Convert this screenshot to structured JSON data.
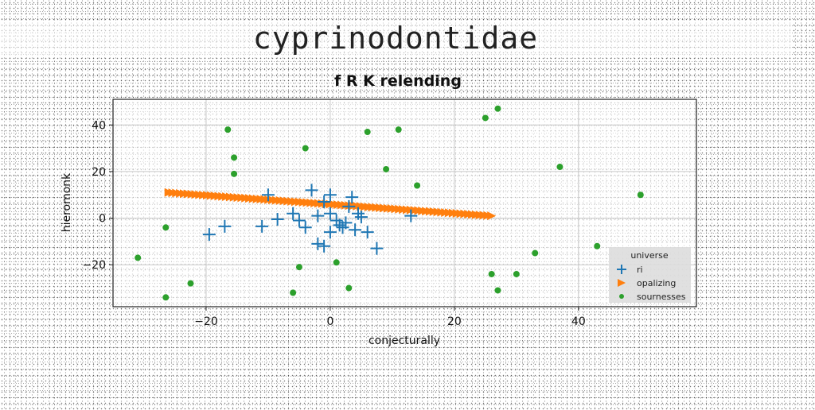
{
  "page": {
    "title": "cyprinodontidae"
  },
  "chart_data": {
    "type": "scatter",
    "title": "f R K relending",
    "xlabel": "conjecturally",
    "ylabel": "hieromonk",
    "xlim": [
      -35,
      59
    ],
    "ylim": [
      -38,
      51
    ],
    "xticks": [
      -20,
      0,
      20,
      40
    ],
    "yticks": [
      -20,
      0,
      20,
      40
    ],
    "grid": true,
    "legend": {
      "title": "universe",
      "placement": "lower-right"
    },
    "series": [
      {
        "name": "ri",
        "marker": "plus",
        "color": "#1f77b4",
        "points": [
          [
            -19.5,
            -7
          ],
          [
            -17,
            -3.5
          ],
          [
            -11,
            -3.5
          ],
          [
            -8.5,
            -0.5
          ],
          [
            -10,
            10
          ],
          [
            -6,
            2
          ],
          [
            -5,
            -1
          ],
          [
            -4,
            -4
          ],
          [
            -3,
            12
          ],
          [
            -2,
            1
          ],
          [
            -2,
            -11
          ],
          [
            -1,
            7
          ],
          [
            -1,
            -12
          ],
          [
            0,
            10
          ],
          [
            0,
            2
          ],
          [
            0,
            -6
          ],
          [
            1,
            -1
          ],
          [
            1.5,
            -3
          ],
          [
            2,
            -4
          ],
          [
            2.5,
            -2
          ],
          [
            3,
            5
          ],
          [
            3.5,
            9
          ],
          [
            4,
            -5
          ],
          [
            4.5,
            2
          ],
          [
            5,
            0.5
          ],
          [
            6,
            -6
          ],
          [
            7.5,
            -13
          ],
          [
            13,
            1
          ]
        ]
      },
      {
        "name": "opalizing",
        "marker": "triangle-right",
        "color": "#ff7f0e",
        "line_from": [
          -26,
          11
        ],
        "line_to": [
          26,
          1
        ],
        "count": 85
      },
      {
        "name": "sournesses",
        "marker": "circle",
        "color": "#2ca02c",
        "points": [
          [
            -31,
            -17
          ],
          [
            -26.5,
            -4
          ],
          [
            -26.5,
            -34
          ],
          [
            -22.5,
            -28
          ],
          [
            -16.5,
            38
          ],
          [
            -15.5,
            26
          ],
          [
            -15.5,
            19
          ],
          [
            -6,
            -32
          ],
          [
            -5,
            -21
          ],
          [
            -4,
            30
          ],
          [
            1,
            -19
          ],
          [
            3,
            -30
          ],
          [
            6,
            37
          ],
          [
            9,
            21
          ],
          [
            11,
            38
          ],
          [
            14,
            14
          ],
          [
            25,
            43
          ],
          [
            26,
            -24
          ],
          [
            27,
            47
          ],
          [
            27,
            -31
          ],
          [
            30,
            -24
          ],
          [
            33,
            -15
          ],
          [
            37,
            22
          ],
          [
            43,
            -12
          ],
          [
            50,
            10
          ]
        ]
      }
    ]
  }
}
